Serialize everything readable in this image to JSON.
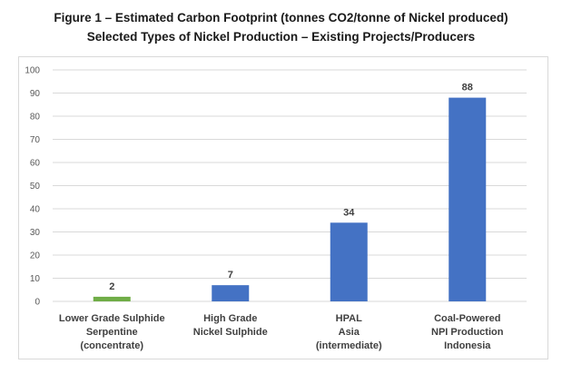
{
  "title_line1": "Figure 1 – Estimated Carbon Footprint (tonnes CO2/tonne of Nickel produced)",
  "title_line2": "Selected Types of Nickel Production – Existing Projects/Producers",
  "chart_data": {
    "type": "bar",
    "categories": [
      [
        "Lower Grade Sulphide",
        "Serpentine",
        "(concentrate)"
      ],
      [
        "High Grade",
        "Nickel Sulphide"
      ],
      [
        "HPAL",
        "Asia",
        "(intermediate)"
      ],
      [
        "Coal-Powered",
        "NPI Production",
        "Indonesia"
      ]
    ],
    "values": [
      2,
      7,
      34,
      88
    ],
    "data_labels": [
      "2",
      "7",
      "34",
      "88"
    ],
    "colors": [
      "#70ad47",
      "#4472c4",
      "#4472c4",
      "#4472c4"
    ],
    "ylim": [
      0,
      100
    ],
    "yticks": [
      0,
      10,
      20,
      30,
      40,
      50,
      60,
      70,
      80,
      90,
      100
    ],
    "grid": true,
    "legend": "none",
    "xlabel": "",
    "ylabel": ""
  }
}
